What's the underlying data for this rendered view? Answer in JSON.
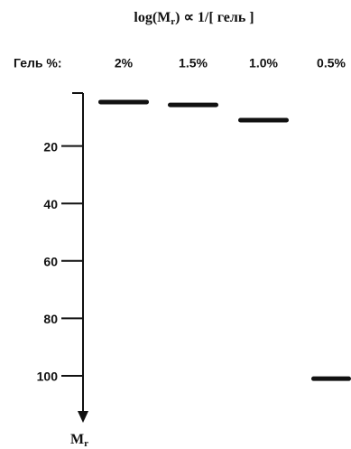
{
  "title": {
    "parts": [
      "log(M",
      "r",
      ") ∝ 1/[ гель ]"
    ]
  },
  "gel_label": "Гель %:",
  "lanes": [
    {
      "label": "2%",
      "band": 4.7
    },
    {
      "label": "1.5%",
      "band": 5.7
    },
    {
      "label": "1.0%",
      "band": 11
    },
    {
      "label": "0.5%",
      "band": 101
    }
  ],
  "axis": {
    "label_parts": [
      "M",
      "r"
    ],
    "lim": [
      0,
      115
    ],
    "ticks": [
      20,
      40,
      60,
      80,
      100
    ]
  }
}
